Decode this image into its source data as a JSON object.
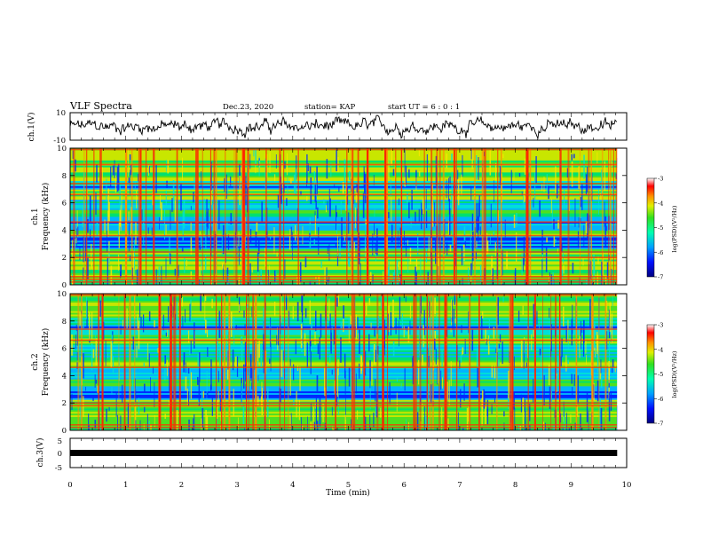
{
  "header": {
    "title": "VLF Spectra",
    "date": "Dec.23, 2020",
    "station": "station= KAP",
    "start": "start  UT =   6 : 0 : 1"
  },
  "chart_data": [
    {
      "type": "line",
      "name": "ch1-waveform",
      "ylabel": "ch.1(V)",
      "ylim": [
        -10,
        10
      ],
      "yticks": [
        "10",
        "-10"
      ],
      "xlim": [
        0,
        10
      ],
      "x_end": 9.83,
      "description_values": {
        "baseline": 0,
        "typical_amplitude": 4
      },
      "color": "#000000"
    },
    {
      "type": "heatmap",
      "name": "ch1-spectrogram",
      "ylabel": "ch.1\nFrequency (kHz)",
      "ylim": [
        0,
        10
      ],
      "yticks": [
        "0",
        "2",
        "4",
        "6",
        "8",
        "10"
      ],
      "xlim": [
        0,
        10
      ],
      "x_end": 9.83,
      "colorbar": {
        "label": "log(PSD)(V²/Hz)",
        "range": [
          -7,
          -3
        ],
        "ticks": [
          "-3",
          "-4",
          "-5",
          "-6",
          "-7"
        ]
      },
      "noise_bands_khz": [
        0.2,
        0.4,
        0.6,
        2.0,
        2.4,
        3.6,
        4.6,
        6.6,
        7.4,
        8.8,
        9.9
      ]
    },
    {
      "type": "heatmap",
      "name": "ch2-spectrogram",
      "ylabel": "ch.2\nFrequency (kHz)",
      "ylim": [
        0,
        10
      ],
      "yticks": [
        "0",
        "2",
        "4",
        "6",
        "8",
        "10"
      ],
      "xlim": [
        0,
        10
      ],
      "x_end": 9.83,
      "colorbar": {
        "label": "log(PSD)(V²/Hz)",
        "range": [
          -7,
          -3
        ],
        "ticks": [
          "-3",
          "-4",
          "-5",
          "-6",
          "-7"
        ]
      },
      "noise_bands_khz": [
        0.2,
        0.4,
        1.8,
        2.0,
        4.6,
        6.6,
        7.4,
        9.9
      ]
    },
    {
      "type": "line",
      "name": "ch3-waveform",
      "ylabel": "ch.3(V)",
      "ylim": [
        -5,
        5
      ],
      "yticks": [
        "5",
        "0",
        "-5"
      ],
      "xlim": [
        0,
        10
      ],
      "x_end": 9.83,
      "value": 0,
      "color": "#000000"
    }
  ],
  "xaxis": {
    "label": "Time  (min)",
    "ticks": [
      "0",
      "1",
      "2",
      "3",
      "4",
      "5",
      "6",
      "7",
      "8",
      "9",
      "10"
    ]
  },
  "colormap": [
    "#0000b0",
    "#0028ff",
    "#00b4ff",
    "#00e0d8",
    "#00e070",
    "#4fe020",
    "#c8e600",
    "#ffe600",
    "#ff9000",
    "#ff2000",
    "#c80000"
  ]
}
